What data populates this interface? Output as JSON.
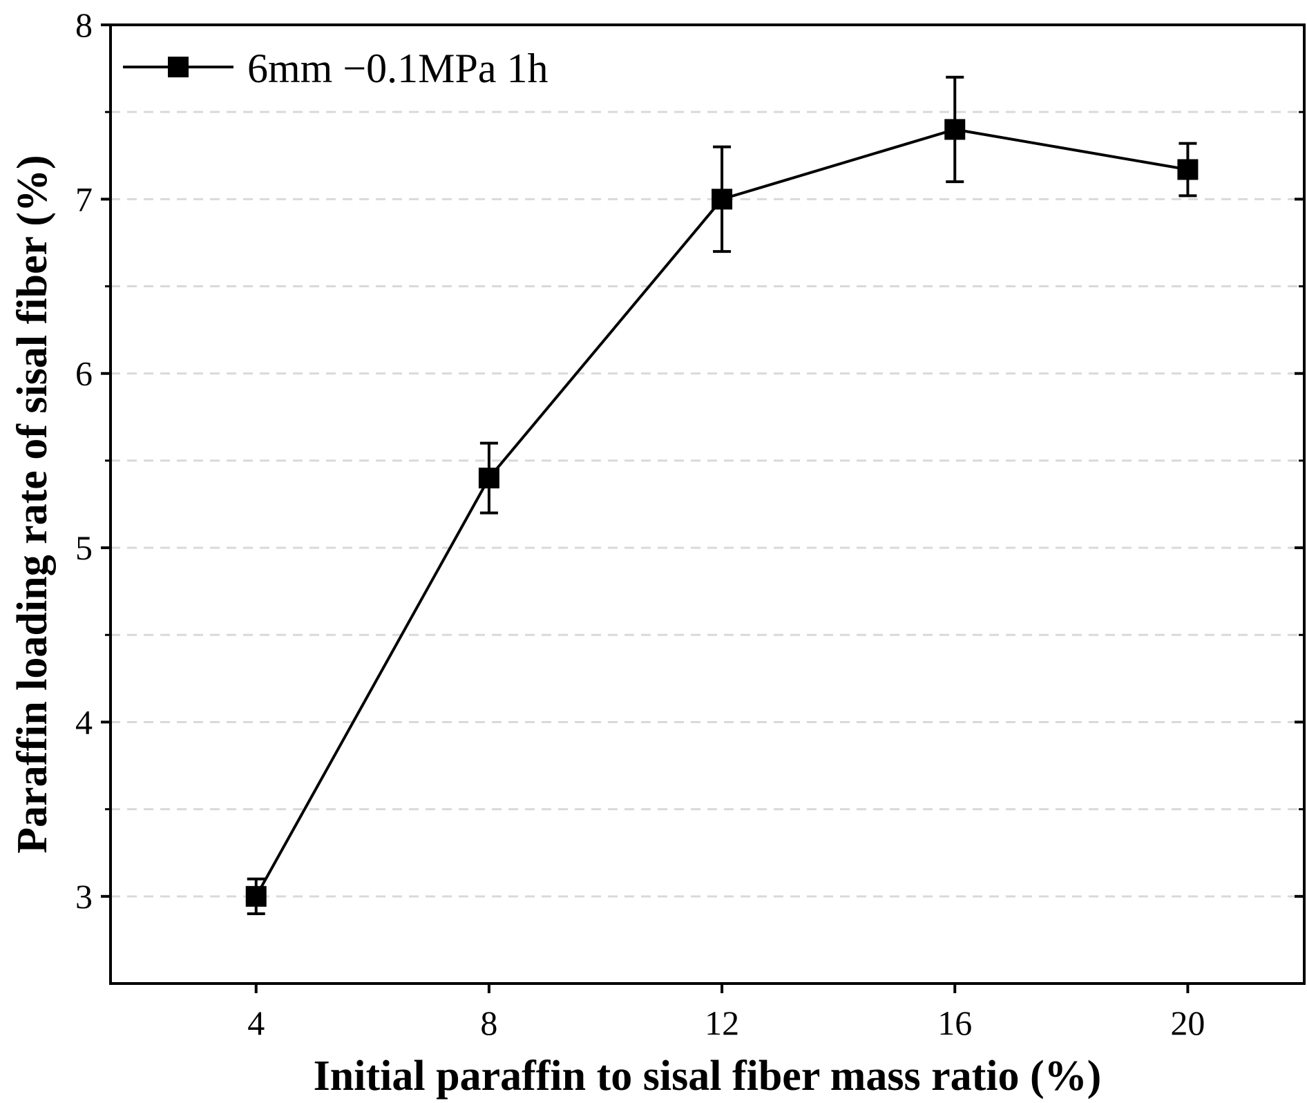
{
  "chart_data": {
    "type": "line",
    "title": "",
    "xlabel": "Initial paraffin to sisal fiber mass ratio (%)",
    "ylabel": "Paraffin loading rate of sisal fiber (%)",
    "xlim": [
      1.5,
      22
    ],
    "ylim": [
      2.5,
      8
    ],
    "xticks": [
      4,
      8,
      12,
      16,
      20
    ],
    "xtick_labels": [
      "4",
      "8",
      "12",
      "16",
      "20"
    ],
    "yticks": [
      3,
      4,
      5,
      6,
      7,
      8
    ],
    "ytick_labels": [
      "3",
      "4",
      "5",
      "6",
      "7",
      "8"
    ],
    "y_minor_ticks": [
      3.5,
      4.5,
      5.5,
      6.5,
      7.5
    ],
    "grid": "horizontal dashed",
    "legend_position": "top-left",
    "series": [
      {
        "name": "6mm −0.1MPa 1h",
        "marker": "square",
        "color": "#000000",
        "x": [
          4,
          8,
          12,
          16,
          20
        ],
        "y": [
          3.0,
          5.4,
          7.0,
          7.4,
          7.17
        ],
        "error": [
          0.1,
          0.2,
          0.3,
          0.3,
          0.15
        ]
      }
    ]
  }
}
